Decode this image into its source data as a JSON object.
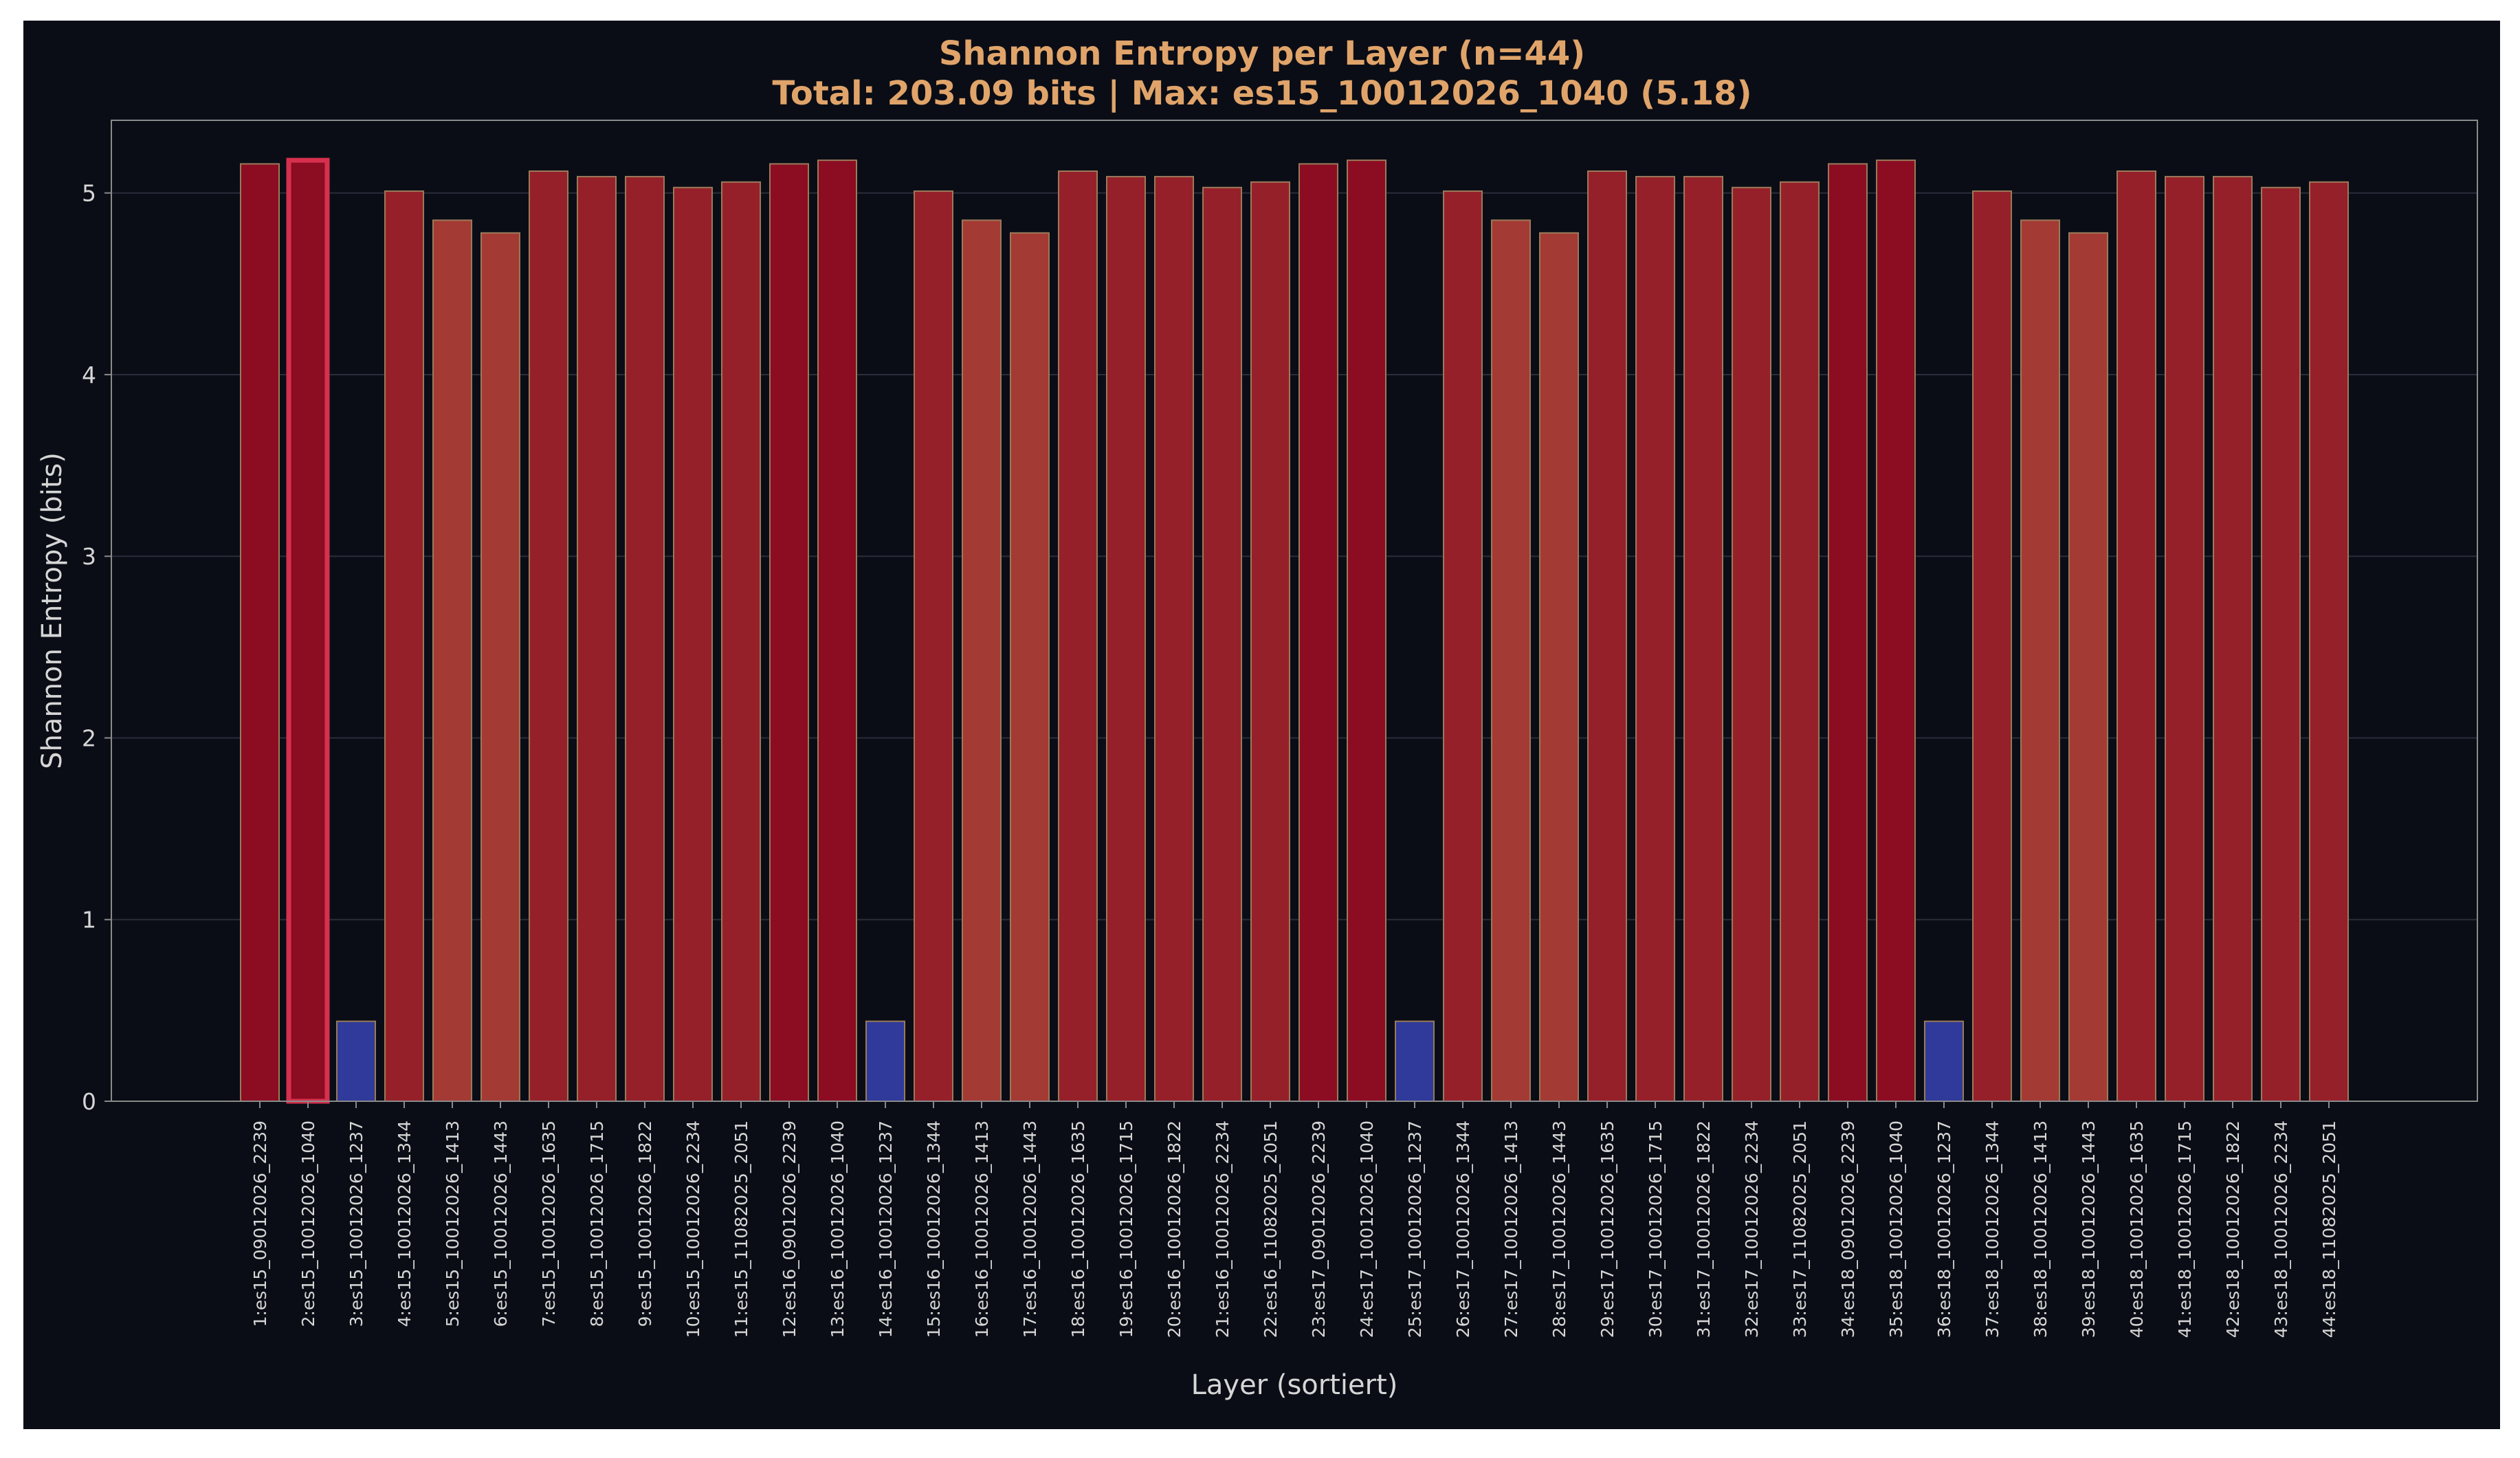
{
  "chart_data": {
    "type": "bar",
    "title": "Shannon Entropy per Layer (n=44)",
    "subtitle": "Total: 203.09 bits | Max: es15_10012026_1040 (5.18)",
    "xlabel": "Layer (sortiert)",
    "ylabel": "Shannon Entropy (bits)",
    "ylim": [
      0,
      5.4
    ],
    "yticks": [
      0,
      1,
      2,
      3,
      4,
      5
    ],
    "grid": true,
    "highlight_index": 1,
    "colors": {
      "background": "#0b0d16",
      "title": "#e0a46a",
      "axis_text": "#d6d6d6",
      "spine": "#8a8a8a",
      "grid": "#2a2d3a",
      "bar_high": "#8c0c22",
      "bar_mid": "#96202a",
      "bar_low": "#a43a34",
      "bar_tiny": "#2f3a9a",
      "bar_edge": "#9a7a5a",
      "highlight_edge": "#d6304e"
    },
    "categories": [
      "1:es15_09012026_2239",
      "2:es15_10012026_1040",
      "3:es15_10012026_1237",
      "4:es15_10012026_1344",
      "5:es15_10012026_1413",
      "6:es15_10012026_1443",
      "7:es15_10012026_1635",
      "8:es15_10012026_1715",
      "9:es15_10012026_1822",
      "10:es15_10012026_2234",
      "11:es15_11082025_2051",
      "12:es16_09012026_2239",
      "13:es16_10012026_1040",
      "14:es16_10012026_1237",
      "15:es16_10012026_1344",
      "16:es16_10012026_1413",
      "17:es16_10012026_1443",
      "18:es16_10012026_1635",
      "19:es16_10012026_1715",
      "20:es16_10012026_1822",
      "21:es16_10012026_2234",
      "22:es16_11082025_2051",
      "23:es17_09012026_2239",
      "24:es17_10012026_1040",
      "25:es17_10012026_1237",
      "26:es17_10012026_1344",
      "27:es17_10012026_1413",
      "28:es17_10012026_1443",
      "29:es17_10012026_1635",
      "30:es17_10012026_1715",
      "31:es17_10012026_1822",
      "32:es17_10012026_2234",
      "33:es17_11082025_2051",
      "34:es18_09012026_2239",
      "35:es18_10012026_1040",
      "36:es18_10012026_1237",
      "37:es18_10012026_1344",
      "38:es18_10012026_1413",
      "39:es18_10012026_1443",
      "40:es18_10012026_1635",
      "41:es18_10012026_1715",
      "42:es18_10012026_1822",
      "43:es18_10012026_2234",
      "44:es18_11082025_2051"
    ],
    "values": [
      5.16,
      5.18,
      0.44,
      5.01,
      4.85,
      4.78,
      5.12,
      5.09,
      5.09,
      5.03,
      5.06,
      5.16,
      5.18,
      0.44,
      5.01,
      4.85,
      4.78,
      5.12,
      5.09,
      5.09,
      5.03,
      5.06,
      5.16,
      5.18,
      0.44,
      5.01,
      4.85,
      4.78,
      5.12,
      5.09,
      5.09,
      5.03,
      5.06,
      5.16,
      5.18,
      0.44,
      5.01,
      4.85,
      4.78,
      5.12,
      5.09,
      5.09,
      5.03,
      5.06
    ]
  }
}
